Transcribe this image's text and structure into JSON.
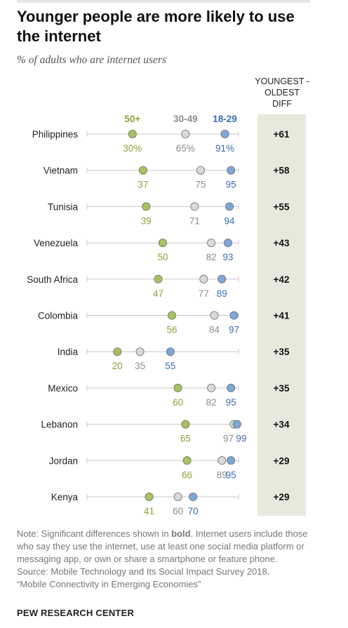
{
  "title": "Younger people are more likely to use the internet",
  "subtitle": "% of adults who are internet users",
  "diff_header": [
    "YOUNGEST -",
    "OLDEST",
    "DIFF"
  ],
  "note": {
    "part1": "Note: Significant differences shown in ",
    "bold_word": "bold",
    "part2": ". Internet users include those who say they use the internet, use at least one social media platform or messaging app, or own or share a smartphone or feature phone.",
    "source": "Source: Mobile Technology and Its Social Impact Survey 2018.",
    "report": "“Mobile Connectivity in Emerging Economies”"
  },
  "credit": "PEW RESEARCH CENTER",
  "colors": {
    "age_50_plus": "#a7c260",
    "age_30_49": "#d9d9d9",
    "age_18_29": "#7ea6d8",
    "label_50_plus": "#8aa33a",
    "label_30_49": "#8c8c8c",
    "label_18_29": "#3a6db5",
    "band": "#e8e8dd"
  },
  "chart_data": {
    "type": "dot",
    "xlim": [
      0,
      100
    ],
    "series": [
      {
        "name": "50+",
        "key": "age_50_plus"
      },
      {
        "name": "30-49",
        "key": "age_30_49"
      },
      {
        "name": "18-29",
        "key": "age_18_29"
      }
    ],
    "rows": [
      {
        "country": "Philippines",
        "age_50_plus": 30,
        "age_30_49": 65,
        "age_18_29": 91,
        "diff": "+61",
        "pct": true
      },
      {
        "country": "Vietnam",
        "age_50_plus": 37,
        "age_30_49": 75,
        "age_18_29": 95,
        "diff": "+58"
      },
      {
        "country": "Tunisia",
        "age_50_plus": 39,
        "age_30_49": 71,
        "age_18_29": 94,
        "diff": "+55"
      },
      {
        "country": "Venezuela",
        "age_50_plus": 50,
        "age_30_49": 82,
        "age_18_29": 93,
        "diff": "+43"
      },
      {
        "country": "South Africa",
        "age_50_plus": 47,
        "age_30_49": 77,
        "age_18_29": 89,
        "diff": "+42"
      },
      {
        "country": "Colombia",
        "age_50_plus": 56,
        "age_30_49": 84,
        "age_18_29": 97,
        "diff": "+41"
      },
      {
        "country": "India",
        "age_50_plus": 20,
        "age_30_49": 35,
        "age_18_29": 55,
        "diff": "+35"
      },
      {
        "country": "Mexico",
        "age_50_plus": 60,
        "age_30_49": 82,
        "age_18_29": 95,
        "diff": "+35"
      },
      {
        "country": "Lebanon",
        "age_50_plus": 65,
        "age_30_49": 97,
        "age_18_29": 99,
        "diff": "+34"
      },
      {
        "country": "Jordan",
        "age_50_plus": 66,
        "age_30_49": 89,
        "age_18_29": 95,
        "diff": "+29"
      },
      {
        "country": "Kenya",
        "age_50_plus": 41,
        "age_30_49": 60,
        "age_18_29": 70,
        "diff": "+29"
      }
    ]
  }
}
